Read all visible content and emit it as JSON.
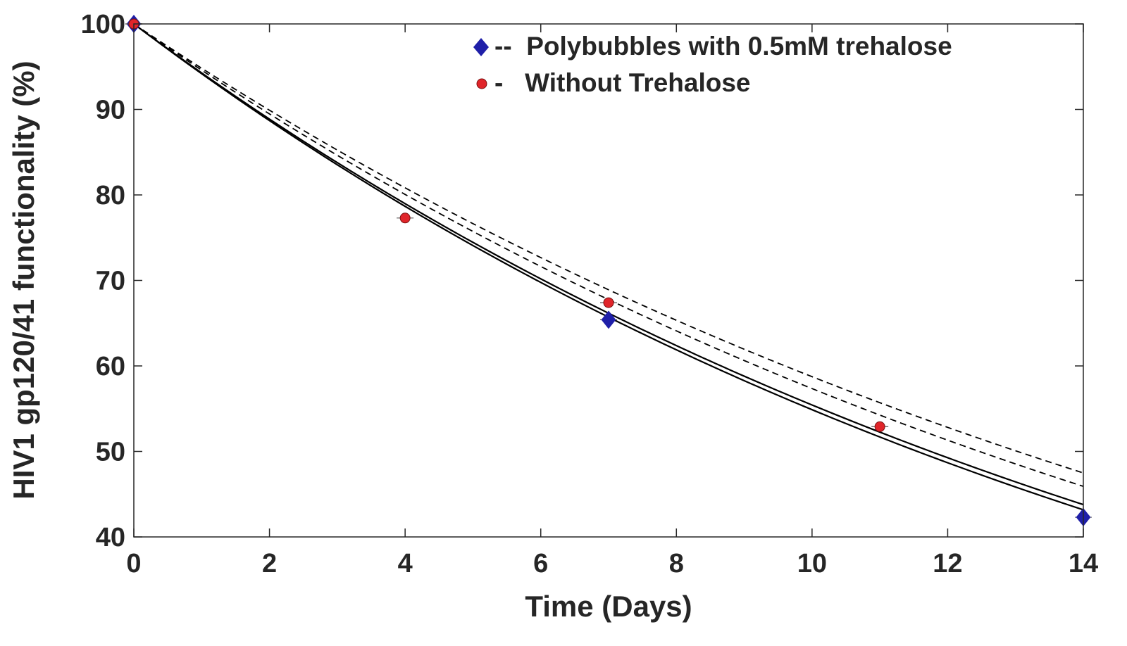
{
  "chart_data": {
    "type": "scatter",
    "title": "",
    "xlabel": "Time (Days)",
    "ylabel": "HIV1 gp120/41 functionality (%)",
    "xlim": [
      0,
      14
    ],
    "ylim": [
      40,
      100
    ],
    "xticks": [
      0,
      2,
      4,
      6,
      8,
      10,
      12,
      14
    ],
    "yticks": [
      40,
      50,
      60,
      70,
      80,
      90,
      100
    ],
    "grid": false,
    "legend_position": "top-right",
    "colors": {
      "series1_marker": "#1f1fa8",
      "series2_marker": "#e0252a",
      "fit_lines": "#000000",
      "axes": "#262626"
    },
    "series": [
      {
        "name": "Polybubbles with 0.5mM trehalose",
        "legend_label": "--  Polybubbles with 0.5mM trehalose",
        "marker": "diamond",
        "x": [
          0,
          7,
          14
        ],
        "y": [
          100,
          65.4,
          42.3
        ]
      },
      {
        "name": "Without Trehalose",
        "legend_label": "-   Without Trehalose",
        "marker": "circle",
        "x": [
          0,
          4,
          7,
          11
        ],
        "y": [
          100,
          77.3,
          67.4,
          52.9
        ]
      }
    ],
    "fit_curves": [
      {
        "style": "solid",
        "y0": 100,
        "rate": 0.059
      },
      {
        "style": "solid",
        "y0": 100,
        "rate": 0.06
      },
      {
        "style": "dashed",
        "y0": 100,
        "rate": 0.0532
      },
      {
        "style": "dashed",
        "y0": 100,
        "rate": 0.0556
      }
    ]
  }
}
